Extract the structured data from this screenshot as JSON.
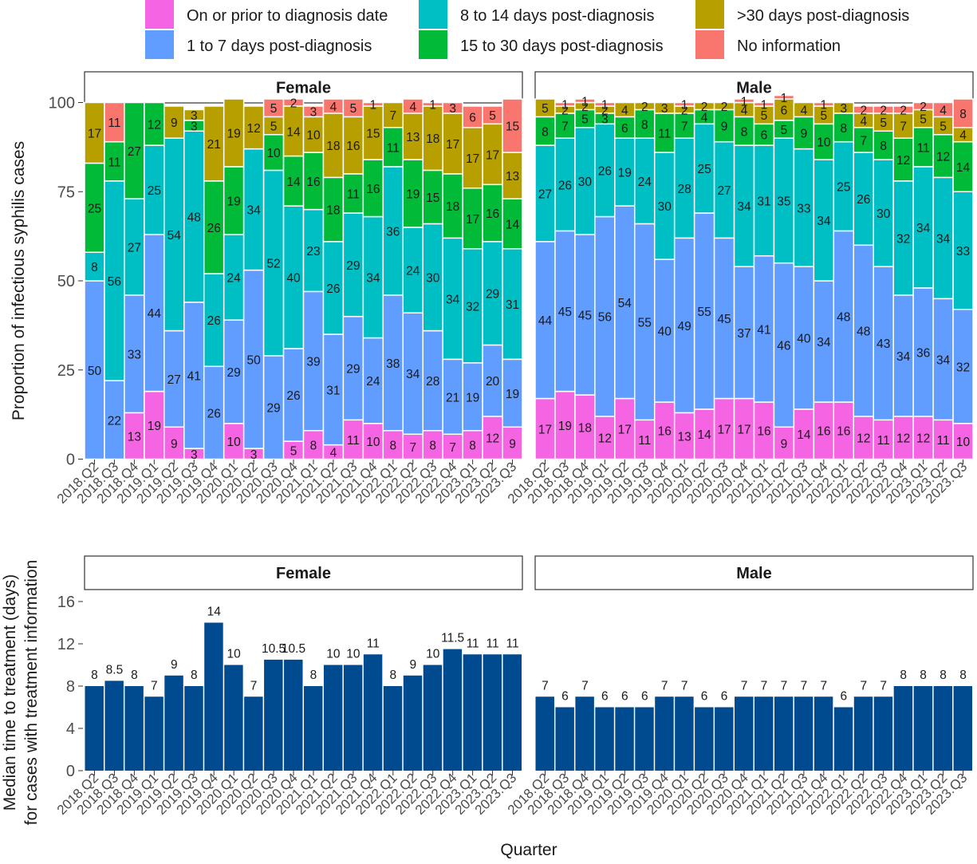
{
  "legend": {
    "items": [
      {
        "label": "On or prior to diagnosis date",
        "color": "#F564E3"
      },
      {
        "label": "1 to 7 days post-diagnosis",
        "color": "#619CFF"
      },
      {
        "label": "8 to 14 days post-diagnosis",
        "color": "#00BFC4"
      },
      {
        "label": "15 to 30 days post-diagnosis",
        "color": "#00BA38"
      },
      {
        "label": ">30 days post-diagnosis",
        "color": "#B79F00"
      },
      {
        "label": "No information",
        "color": "#F8766D"
      }
    ]
  },
  "facets": {
    "female": "Female",
    "male": "Male"
  },
  "axis": {
    "top_ylabel": "Proportion of infectious syphilis cases",
    "bottom_ylabel_line1": "Median time to treatment (days)",
    "bottom_ylabel_line2": "for cases with treatment information",
    "xlabel": "Quarter"
  },
  "chart_data": [
    {
      "type": "bar",
      "stacked": true,
      "title": "",
      "ylim": [
        0,
        100
      ],
      "yticks": [
        0,
        25,
        50,
        75,
        100
      ],
      "ylabel": "Proportion of infectious syphilis cases",
      "categories": [
        "2018.Q2",
        "2018.Q3",
        "2018.Q4",
        "2019.Q1",
        "2019.Q2",
        "2019.Q3",
        "2019.Q4",
        "2020.Q1",
        "2020.Q2",
        "2020.Q3",
        "2020.Q4",
        "2021.Q1",
        "2021.Q2",
        "2021.Q3",
        "2021.Q4",
        "2022.Q1",
        "2022.Q2",
        "2022.Q3",
        "2022.Q4",
        "2023.Q1",
        "2023.Q2",
        "2023.Q3"
      ],
      "panels": [
        {
          "facet": "Female",
          "series": [
            {
              "name": "On or prior to diagnosis date",
              "values": [
                0,
                0,
                13,
                19,
                9,
                3,
                0,
                10,
                3,
                0,
                5,
                8,
                4,
                11,
                10,
                8,
                7,
                8,
                7,
                8,
                12,
                9
              ]
            },
            {
              "name": "1 to 7 days post-diagnosis",
              "values": [
                50,
                22,
                33,
                44,
                27,
                41,
                26,
                29,
                50,
                29,
                26,
                39,
                31,
                29,
                24,
                38,
                34,
                28,
                21,
                19,
                20,
                19
              ]
            },
            {
              "name": "8 to 14 days post-diagnosis",
              "values": [
                8,
                56,
                27,
                25,
                54,
                48,
                26,
                24,
                34,
                52,
                40,
                23,
                26,
                29,
                34,
                36,
                24,
                30,
                34,
                32,
                29,
                31
              ]
            },
            {
              "name": "15 to 30 days post-diagnosis",
              "values": [
                25,
                11,
                27,
                12,
                0,
                3,
                26,
                19,
                0,
                10,
                14,
                16,
                18,
                11,
                16,
                11,
                19,
                15,
                18,
                17,
                16,
                14
              ]
            },
            {
              "name": ">30 days post-diagnosis",
              "values": [
                17,
                0,
                0,
                0,
                9,
                3,
                21,
                19,
                12,
                5,
                14,
                10,
                18,
                16,
                15,
                7,
                13,
                18,
                17,
                17,
                17,
                13
              ]
            },
            {
              "name": "No information",
              "values": [
                0,
                11,
                0,
                0,
                0,
                0,
                0,
                0,
                0,
                5,
                2,
                3,
                4,
                5,
                1,
                0,
                4,
                1,
                3,
                6,
                5,
                15
              ]
            }
          ]
        },
        {
          "facet": "Male",
          "series": [
            {
              "name": "On or prior to diagnosis date",
              "values": [
                17,
                19,
                18,
                12,
                17,
                11,
                16,
                13,
                14,
                17,
                17,
                16,
                9,
                14,
                16,
                16,
                12,
                11,
                12,
                12,
                11,
                10
              ]
            },
            {
              "name": "1 to 7 days post-diagnosis",
              "values": [
                44,
                45,
                45,
                56,
                54,
                55,
                40,
                49,
                55,
                45,
                37,
                41,
                46,
                40,
                34,
                48,
                48,
                43,
                34,
                36,
                34,
                32
              ]
            },
            {
              "name": "8 to 14 days post-diagnosis",
              "values": [
                27,
                26,
                30,
                26,
                19,
                24,
                30,
                28,
                25,
                27,
                34,
                31,
                35,
                33,
                34,
                25,
                26,
                30,
                32,
                34,
                34,
                33
              ]
            },
            {
              "name": "15 to 30 days post-diagnosis",
              "values": [
                8,
                7,
                5,
                3,
                6,
                8,
                11,
                7,
                4,
                9,
                8,
                6,
                5,
                9,
                10,
                8,
                7,
                8,
                12,
                11,
                12,
                14
              ]
            },
            {
              "name": ">30 days post-diagnosis",
              "values": [
                5,
                2,
                2,
                2,
                4,
                2,
                3,
                2,
                2,
                2,
                4,
                5,
                6,
                4,
                5,
                3,
                4,
                5,
                7,
                5,
                5,
                4
              ]
            },
            {
              "name": "No information",
              "values": [
                0,
                1,
                1,
                1,
                0,
                0,
                0,
                1,
                0,
                0,
                1,
                1,
                1,
                0,
                1,
                0,
                2,
                2,
                2,
                2,
                4,
                8
              ]
            }
          ]
        }
      ]
    },
    {
      "type": "bar",
      "title": "",
      "ylim": [
        0,
        17
      ],
      "yticks": [
        0,
        4,
        8,
        12,
        16
      ],
      "ylabel": "Median time to treatment (days) for cases with treatment information",
      "xlabel": "Quarter",
      "color": "#004A8F",
      "categories": [
        "2018.Q2",
        "2018.Q3",
        "2018.Q4",
        "2019.Q1",
        "2019.Q2",
        "2019.Q3",
        "2019.Q4",
        "2020.Q1",
        "2020.Q2",
        "2020.Q3",
        "2020.Q4",
        "2021.Q1",
        "2021.Q2",
        "2021.Q3",
        "2021.Q4",
        "2022.Q1",
        "2022.Q2",
        "2022.Q3",
        "2022.Q4",
        "2023.Q1",
        "2023.Q2",
        "2023.Q3"
      ],
      "panels": [
        {
          "facet": "Female",
          "values": [
            8,
            8.5,
            8,
            7,
            9,
            8,
            14,
            10,
            7,
            10.5,
            10.5,
            8,
            10,
            10,
            11,
            8,
            9,
            10,
            11.5,
            11,
            11,
            11
          ]
        },
        {
          "facet": "Male",
          "values": [
            7,
            6,
            7,
            6,
            6,
            6,
            7,
            7,
            6,
            6,
            7,
            7,
            7,
            7,
            7,
            6,
            7,
            7,
            8,
            8,
            8,
            8
          ]
        }
      ]
    }
  ]
}
